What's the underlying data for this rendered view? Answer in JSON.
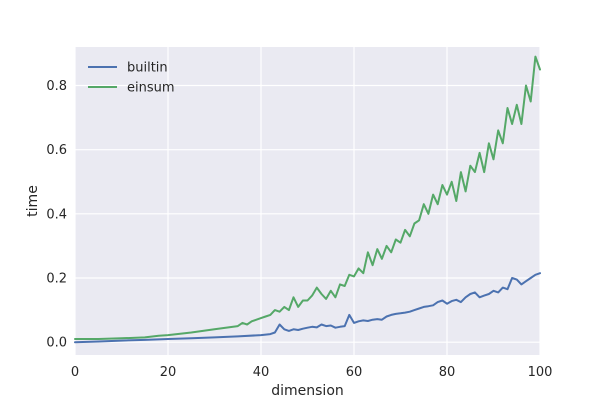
{
  "chart_data": {
    "type": "line",
    "title": "",
    "xlabel": "dimension",
    "ylabel": "time",
    "xlim": [
      0,
      100
    ],
    "ylim": [
      -0.04,
      0.92
    ],
    "xticks": [
      0,
      20,
      40,
      60,
      80,
      100
    ],
    "yticks": [
      0.0,
      0.2,
      0.4,
      0.6,
      0.8
    ],
    "xtick_labels": [
      "0",
      "20",
      "40",
      "60",
      "80",
      "100"
    ],
    "ytick_labels": [
      "0.0",
      "0.2",
      "0.4",
      "0.6",
      "0.8"
    ],
    "grid": true,
    "legend_position": "top-left",
    "background": "#eaeaf2",
    "gridline_color": "#ffffff",
    "series": [
      {
        "name": "builtin",
        "color": "#4c72b0",
        "x": [
          0,
          5,
          10,
          15,
          20,
          25,
          30,
          35,
          40,
          42,
          43,
          44,
          45,
          46,
          47,
          48,
          49,
          50,
          51,
          52,
          53,
          54,
          55,
          56,
          57,
          58,
          59,
          60,
          61,
          62,
          63,
          64,
          65,
          66,
          67,
          68,
          69,
          70,
          71,
          72,
          73,
          74,
          75,
          76,
          77,
          78,
          79,
          80,
          81,
          82,
          83,
          84,
          85,
          86,
          87,
          88,
          89,
          90,
          91,
          92,
          93,
          94,
          95,
          96,
          97,
          98,
          99,
          100
        ],
        "y": [
          0.0,
          0.002,
          0.005,
          0.007,
          0.01,
          0.012,
          0.015,
          0.018,
          0.022,
          0.025,
          0.03,
          0.055,
          0.04,
          0.035,
          0.04,
          0.038,
          0.042,
          0.045,
          0.048,
          0.046,
          0.055,
          0.05,
          0.052,
          0.045,
          0.048,
          0.05,
          0.085,
          0.06,
          0.065,
          0.068,
          0.066,
          0.07,
          0.072,
          0.07,
          0.08,
          0.085,
          0.088,
          0.09,
          0.092,
          0.095,
          0.1,
          0.105,
          0.11,
          0.112,
          0.115,
          0.125,
          0.13,
          0.12,
          0.128,
          0.132,
          0.125,
          0.14,
          0.15,
          0.155,
          0.14,
          0.145,
          0.15,
          0.16,
          0.155,
          0.17,
          0.165,
          0.2,
          0.195,
          0.18,
          0.19,
          0.2,
          0.21,
          0.215
        ]
      },
      {
        "name": "einsum",
        "color": "#55a868",
        "x": [
          0,
          5,
          10,
          15,
          18,
          20,
          25,
          30,
          35,
          36,
          37,
          38,
          39,
          40,
          41,
          42,
          43,
          44,
          45,
          46,
          47,
          48,
          49,
          50,
          51,
          52,
          53,
          54,
          55,
          56,
          57,
          58,
          59,
          60,
          61,
          62,
          63,
          64,
          65,
          66,
          67,
          68,
          69,
          70,
          71,
          72,
          73,
          74,
          75,
          76,
          77,
          78,
          79,
          80,
          81,
          82,
          83,
          84,
          85,
          86,
          87,
          88,
          89,
          90,
          91,
          92,
          93,
          94,
          95,
          96,
          97,
          98,
          99,
          100
        ],
        "y": [
          0.01,
          0.01,
          0.012,
          0.015,
          0.02,
          0.022,
          0.03,
          0.04,
          0.05,
          0.06,
          0.055,
          0.065,
          0.07,
          0.075,
          0.08,
          0.085,
          0.1,
          0.095,
          0.11,
          0.1,
          0.14,
          0.11,
          0.13,
          0.13,
          0.145,
          0.17,
          0.15,
          0.135,
          0.16,
          0.14,
          0.18,
          0.175,
          0.21,
          0.205,
          0.23,
          0.215,
          0.28,
          0.24,
          0.29,
          0.26,
          0.3,
          0.28,
          0.32,
          0.31,
          0.35,
          0.33,
          0.37,
          0.38,
          0.43,
          0.4,
          0.46,
          0.43,
          0.49,
          0.46,
          0.5,
          0.44,
          0.53,
          0.47,
          0.55,
          0.53,
          0.59,
          0.53,
          0.62,
          0.57,
          0.66,
          0.62,
          0.73,
          0.68,
          0.74,
          0.68,
          0.8,
          0.75,
          0.89,
          0.85
        ]
      }
    ]
  }
}
